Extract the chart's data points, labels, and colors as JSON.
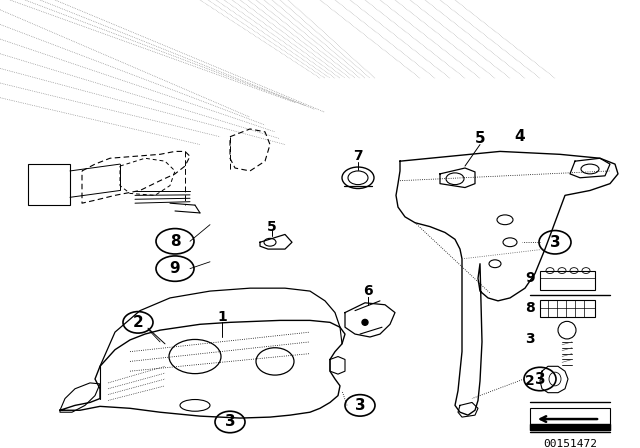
{
  "bg_color": "#ffffff",
  "line_color": "#000000",
  "diagram_number": "00151472",
  "fig_width": 6.4,
  "fig_height": 4.48,
  "dpi": 100
}
